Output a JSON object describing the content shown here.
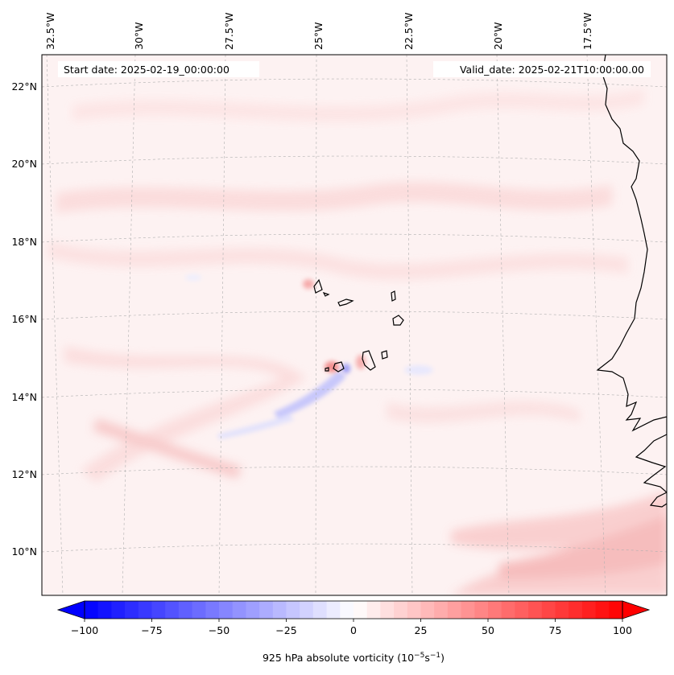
{
  "annotations": {
    "start_date": "Start date: 2025-02-19_00:00:00",
    "valid_date": "Valid_date: 2025-02-21T10:00:00.00"
  },
  "longitude_labels": [
    "32.5°W",
    "30°W",
    "27.5°W",
    "25°W",
    "22.5°W",
    "20°W",
    "17.5°W"
  ],
  "latitude_labels": [
    "22°N",
    "20°N",
    "18°N",
    "16°N",
    "14°N",
    "12°N",
    "10°N"
  ],
  "colorbar": {
    "tick_labels": [
      "−100",
      "−75",
      "−50",
      "−25",
      "0",
      "25",
      "50",
      "75",
      "100"
    ],
    "label_prefix": "925 hPa absolute vorticity (10",
    "label_exp1": "−5",
    "label_mid": "s",
    "label_exp2": "−1",
    "label_suffix": ")",
    "vmin": -100,
    "vmax": 100,
    "levels": 40,
    "colormap": "bwr"
  },
  "map": {
    "projection": "lambert-conformal",
    "background_color": "#fdf1f1",
    "coastline_color": "#000000"
  }
}
